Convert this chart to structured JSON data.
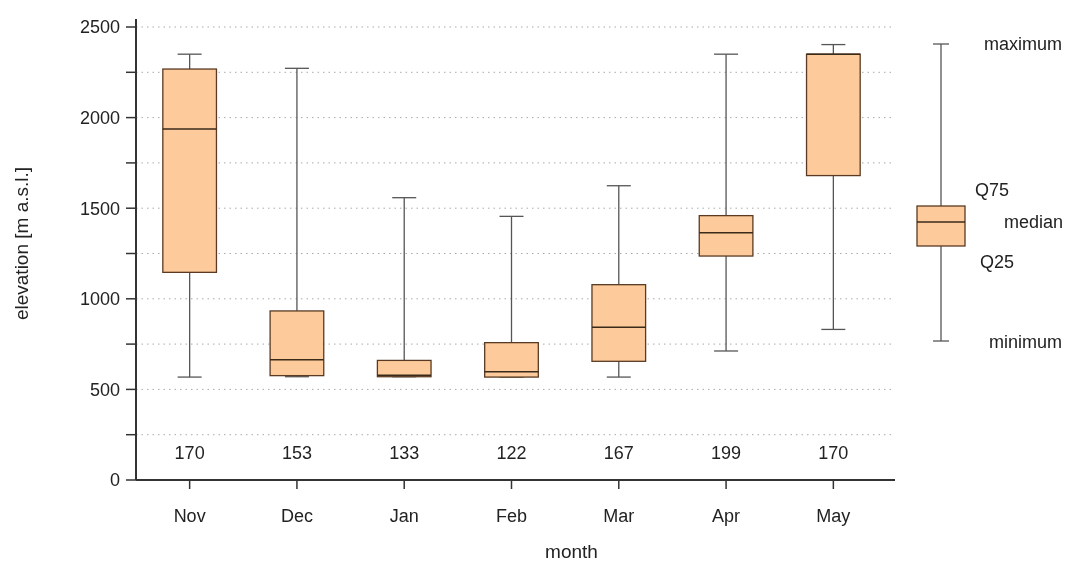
{
  "chart_data": {
    "type": "box",
    "xlabel": "month",
    "ylabel": "elevation [m a.s.l.]",
    "categories": [
      "Nov",
      "Dec",
      "Jan",
      "Feb",
      "Mar",
      "Apr",
      "May"
    ],
    "color": "#fdcb9b",
    "boxes": [
      {
        "low": 568,
        "q1": 1146,
        "median": 1937,
        "q3": 2268,
        "high": 2350
      },
      {
        "low": 570,
        "q1": 576,
        "median": 664,
        "q3": 933,
        "high": 2272
      },
      {
        "low": 570,
        "q1": 570,
        "median": 578,
        "q3": 660,
        "high": 1558
      },
      {
        "low": 568,
        "q1": 568,
        "median": 598,
        "q3": 758,
        "high": 1455
      },
      {
        "low": 568,
        "q1": 655,
        "median": 843,
        "q3": 1078,
        "high": 1624
      },
      {
        "low": 712,
        "q1": 1236,
        "median": 1365,
        "q3": 1459,
        "high": 2350
      },
      {
        "low": 831,
        "q1": 1680,
        "median": 2350,
        "q3": 2350,
        "high": 2403
      }
    ],
    "ylim": [
      0,
      2500
    ],
    "yticks": [
      0,
      {
        "value": 250,
        "label": null
      },
      500,
      {
        "value": 750,
        "label": null
      },
      1000,
      {
        "value": 1250,
        "label": null
      },
      1500,
      {
        "value": 1750,
        "label": null
      },
      2000,
      {
        "value": 2250,
        "label": null
      },
      2500
    ],
    "grid": true,
    "legend": false,
    "annotations": [
      "170",
      "153",
      "133",
      "122",
      "167",
      "199",
      "170",
      "maximum",
      "Q75",
      "median",
      "Q25",
      "minimum"
    ]
  }
}
